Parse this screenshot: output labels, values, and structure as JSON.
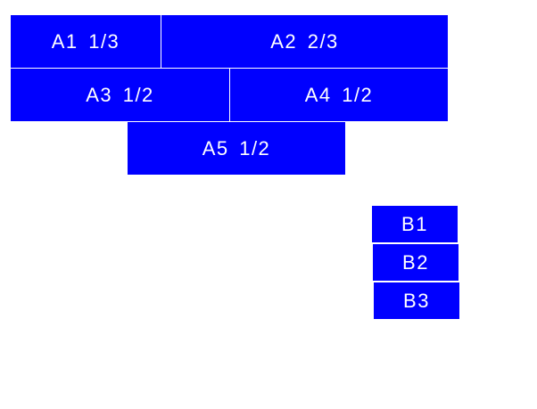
{
  "colors": {
    "box": "#0000ff",
    "text": "#ffffff"
  },
  "group_a": [
    "A1 1/3",
    "A2 2/3",
    "A3 1/2",
    "A4 1/2",
    "A5 1/2"
  ],
  "group_b": [
    "B1",
    "B2",
    "B3"
  ]
}
